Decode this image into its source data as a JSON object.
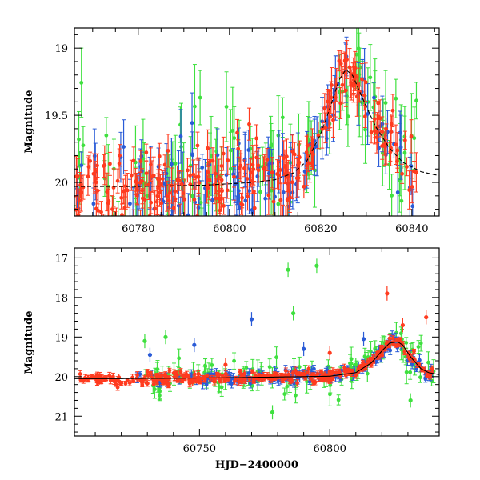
{
  "chart_data": [
    {
      "type": "scatter",
      "panel": "top",
      "xlabel": "",
      "ylabel": "Magnitude",
      "xlim": [
        60766,
        60846
      ],
      "ylim": [
        20.25,
        18.85
      ],
      "y_inverted": true,
      "xticks": [
        60780,
        60800,
        60820,
        60840
      ],
      "yticks": [
        19,
        19.5,
        20
      ],
      "ytick_labels": [
        "19",
        "19.5",
        "20"
      ],
      "series_colors": [
        "#2a5bd7",
        "#3fe03f",
        "#ff3b1f"
      ],
      "model_curve": {
        "x": [
          60766,
          60780,
          60795,
          60805,
          60810,
          60814,
          60817,
          60820,
          60822,
          60824,
          60825.5,
          60827,
          60829,
          60832,
          60835,
          60838,
          60842,
          60846
        ],
        "y": [
          20.03,
          20.03,
          20.02,
          20.0,
          19.98,
          19.93,
          19.84,
          19.64,
          19.45,
          19.24,
          19.16,
          19.2,
          19.36,
          19.58,
          19.74,
          19.85,
          19.92,
          19.95
        ]
      }
    },
    {
      "type": "scatter",
      "panel": "bottom",
      "xlabel": "HJD−2400000",
      "ylabel": "Magnitude",
      "xlim": [
        60702,
        60842
      ],
      "ylim": [
        21.5,
        16.75
      ],
      "y_inverted": true,
      "xticks": [
        60750,
        60800
      ],
      "yticks": [
        17,
        18,
        19,
        20,
        21
      ],
      "ytick_labels": [
        "17",
        "18",
        "19",
        "20",
        "21"
      ],
      "series_colors": [
        "#2a5bd7",
        "#3fe03f",
        "#ff3b1f"
      ],
      "outliers": {
        "blue": [
          [
            60731,
            19.45
          ],
          [
            60748,
            19.2
          ],
          [
            60770,
            18.55
          ],
          [
            60790,
            19.3
          ],
          [
            60813,
            19.05
          ]
        ],
        "green": [
          [
            60729,
            19.1
          ],
          [
            60737,
            19.0
          ],
          [
            60784,
            17.3
          ],
          [
            60795,
            17.2
          ],
          [
            60786,
            18.4
          ],
          [
            60778,
            20.9
          ],
          [
            60810,
            19.7
          ],
          [
            60831,
            20.6
          ]
        ],
        "red": [
          [
            60822,
            17.9
          ],
          [
            60828,
            18.7
          ],
          [
            60837,
            18.5
          ],
          [
            60760,
            19.7
          ],
          [
            60800,
            19.4
          ]
        ]
      },
      "model_curve": {
        "x": [
          60702,
          60720,
          60760,
          60800,
          60810,
          60816,
          60820,
          60823,
          60826,
          60828,
          60831,
          60835,
          60838,
          60842
        ],
        "y": [
          20.05,
          20.05,
          20.03,
          19.99,
          19.9,
          19.65,
          19.35,
          19.15,
          19.12,
          19.2,
          19.5,
          19.8,
          19.9,
          19.95
        ]
      }
    }
  ]
}
